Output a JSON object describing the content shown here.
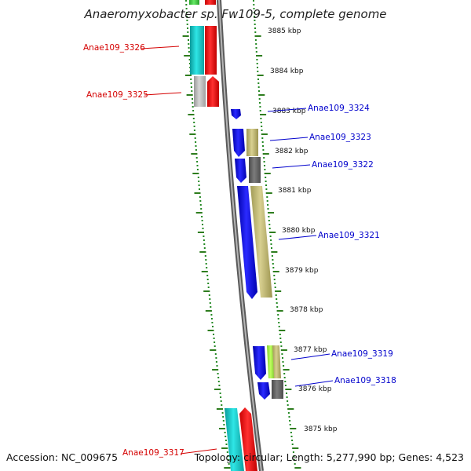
{
  "title": "Anaeromyxobacter sp. Fw109-5, complete genome",
  "accession_text": "Accession: NC_009675",
  "topology_text": "Topology: circular; Length: 5,277,990 bp; Genes: 4,523",
  "colors": {
    "reverse_label": "#d40000",
    "forward_label": "#0000cc",
    "backbone": "#8a8a8a",
    "tick_dot": "#228822",
    "tick_dash": "#2e7d1e",
    "cyan": "#18c8c8",
    "red": "#ff1010",
    "light_gray": "#bdbdbd",
    "blue": "#1414e6",
    "khaki": "#c8c07a",
    "dark_gray": "#6b6b6b",
    "green": "#44d444",
    "lime": "#a8f048"
  },
  "ticks": [
    {
      "label": "3885 kbp"
    },
    {
      "label": "3884 kbp"
    },
    {
      "label": "3883 kbp"
    },
    {
      "label": "3882 kbp"
    },
    {
      "label": "3881 kbp"
    },
    {
      "label": "3880 kbp"
    },
    {
      "label": "3879 kbp"
    },
    {
      "label": "3878 kbp"
    },
    {
      "label": "3877 kbp"
    },
    {
      "label": "3876 kbp"
    },
    {
      "label": "3875 kbp"
    }
  ],
  "gene_labels": [
    {
      "name": "Anae109_3326",
      "strand": "reverse"
    },
    {
      "name": "Anae109_3325",
      "strand": "reverse"
    },
    {
      "name": "Anae109_3324",
      "strand": "forward"
    },
    {
      "name": "Anae109_3323",
      "strand": "forward"
    },
    {
      "name": "Anae109_3322",
      "strand": "forward"
    },
    {
      "name": "Anae109_3321",
      "strand": "forward"
    },
    {
      "name": "Anae109_3319",
      "strand": "forward"
    },
    {
      "name": "Anae109_3318",
      "strand": "forward"
    },
    {
      "name": "Anae109_3317",
      "strand": "reverse"
    }
  ]
}
